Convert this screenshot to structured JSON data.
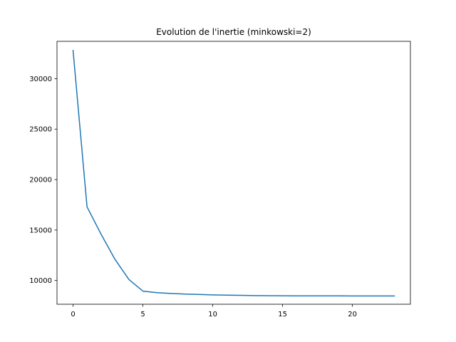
{
  "chart_data": {
    "type": "line",
    "title": "Evolution de l'inertie (minkowski=2)",
    "xlabel": "",
    "ylabel": "",
    "xlim": [
      -1.15,
      24.15
    ],
    "ylim": [
      7650,
      33700
    ],
    "xticks": [
      0,
      5,
      10,
      15,
      20
    ],
    "yticks": [
      10000,
      15000,
      20000,
      25000,
      30000
    ],
    "grid": false,
    "series": [
      {
        "color": "#1f77b4",
        "x": [
          0,
          1,
          2,
          3,
          4,
          5,
          6,
          7,
          8,
          9,
          10,
          11,
          12,
          13,
          14,
          15,
          16,
          17,
          18,
          19,
          20,
          21,
          22,
          23
        ],
        "y": [
          32800,
          17300,
          14600,
          12100,
          10100,
          8950,
          8800,
          8720,
          8660,
          8620,
          8580,
          8550,
          8530,
          8510,
          8495,
          8485,
          8480,
          8478,
          8476,
          8475,
          8474,
          8473,
          8472,
          8472
        ]
      }
    ]
  }
}
